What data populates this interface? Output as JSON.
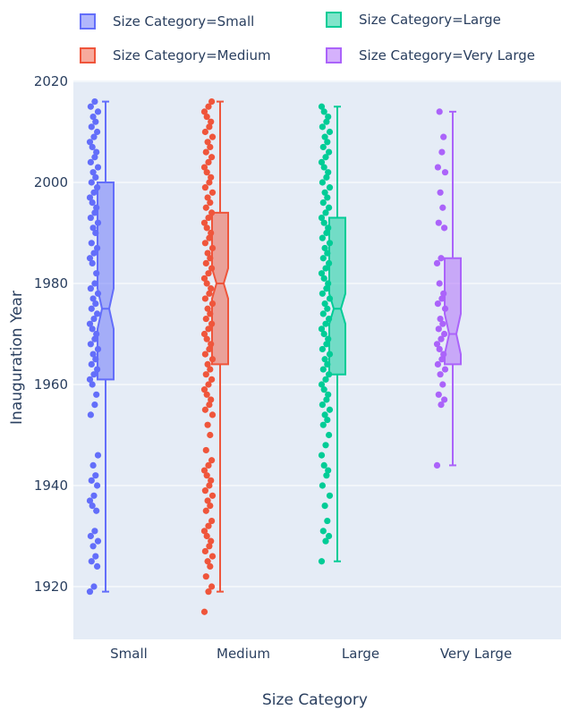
{
  "chart_data": {
    "type": "box",
    "xlabel": "Size Category",
    "ylabel": "Inauguration Year",
    "ylim": [
      1910,
      2020
    ],
    "yticks": [
      1920,
      1940,
      1960,
      1980,
      2000,
      2020
    ],
    "categories": [
      "Small",
      "Medium",
      "Large",
      "Very Large"
    ],
    "grid": true,
    "legend_position": "top",
    "legend": [
      "Size Category=Small",
      "Size Category=Medium",
      "Size Category=Large",
      "Size Category=Very Large"
    ],
    "series": [
      {
        "name": "Size Category=Small",
        "category": "Small",
        "color": "#636efa",
        "min": 1919,
        "q1": 1961,
        "median": 1975,
        "q3": 2000,
        "max": 2016,
        "notch_low": 1971,
        "notch_high": 1979,
        "points": [
          1919,
          1920,
          1924,
          1925,
          1926,
          1928,
          1929,
          1930,
          1931,
          1935,
          1936,
          1937,
          1938,
          1940,
          1941,
          1942,
          1944,
          1946,
          1954,
          1956,
          1958,
          1960,
          1961,
          1962,
          1963,
          1964,
          1965,
          1966,
          1967,
          1968,
          1969,
          1970,
          1971,
          1972,
          1973,
          1974,
          1975,
          1976,
          1977,
          1978,
          1979,
          1980,
          1982,
          1984,
          1985,
          1986,
          1987,
          1988,
          1990,
          1991,
          1992,
          1993,
          1994,
          1995,
          1996,
          1997,
          1998,
          1999,
          2000,
          2001,
          2002,
          2003,
          2004,
          2005,
          2006,
          2007,
          2008,
          2009,
          2010,
          2011,
          2012,
          2013,
          2014,
          2015,
          2016
        ]
      },
      {
        "name": "Size Category=Medium",
        "category": "Medium",
        "color": "#ef553b",
        "min": 1919,
        "q1": 1964,
        "median": 1980,
        "q3": 1994,
        "max": 2016,
        "notch_low": 1977,
        "notch_high": 1983,
        "points": [
          1915,
          1919,
          1920,
          1922,
          1924,
          1925,
          1926,
          1927,
          1928,
          1929,
          1930,
          1931,
          1932,
          1933,
          1935,
          1936,
          1937,
          1938,
          1939,
          1940,
          1941,
          1942,
          1943,
          1944,
          1945,
          1947,
          1950,
          1952,
          1954,
          1955,
          1956,
          1957,
          1958,
          1959,
          1960,
          1961,
          1962,
          1963,
          1964,
          1965,
          1966,
          1967,
          1968,
          1969,
          1970,
          1971,
          1972,
          1973,
          1974,
          1975,
          1976,
          1977,
          1978,
          1979,
          1980,
          1981,
          1982,
          1983,
          1984,
          1985,
          1986,
          1987,
          1988,
          1989,
          1990,
          1991,
          1992,
          1993,
          1994,
          1995,
          1996,
          1997,
          1998,
          1999,
          2000,
          2001,
          2002,
          2003,
          2004,
          2005,
          2006,
          2007,
          2008,
          2009,
          2010,
          2011,
          2012,
          2013,
          2014,
          2015,
          2016
        ]
      },
      {
        "name": "Size Category=Large",
        "category": "Large",
        "color": "#00cc96",
        "min": 1925,
        "q1": 1962,
        "median": 1975,
        "q3": 1993,
        "max": 2015,
        "notch_low": 1972,
        "notch_high": 1978,
        "points": [
          1925,
          1929,
          1930,
          1931,
          1933,
          1936,
          1938,
          1940,
          1942,
          1943,
          1944,
          1946,
          1948,
          1950,
          1952,
          1953,
          1954,
          1955,
          1956,
          1957,
          1958,
          1959,
          1960,
          1961,
          1962,
          1963,
          1964,
          1965,
          1966,
          1967,
          1968,
          1969,
          1970,
          1971,
          1972,
          1973,
          1974,
          1975,
          1976,
          1977,
          1978,
          1979,
          1980,
          1981,
          1982,
          1983,
          1984,
          1985,
          1986,
          1987,
          1988,
          1989,
          1990,
          1991,
          1992,
          1993,
          1994,
          1995,
          1996,
          1997,
          1998,
          1999,
          2000,
          2001,
          2002,
          2003,
          2004,
          2005,
          2006,
          2007,
          2008,
          2009,
          2010,
          2011,
          2012,
          2013,
          2014,
          2015
        ]
      },
      {
        "name": "Size Category=Very Large",
        "category": "Very Large",
        "color": "#ab63fa",
        "min": 1944,
        "q1": 1964,
        "median": 1970,
        "q3": 1985,
        "max": 2014,
        "notch_low": 1966,
        "notch_high": 1974,
        "points": [
          1944,
          1956,
          1957,
          1958,
          1960,
          1962,
          1963,
          1964,
          1965,
          1966,
          1967,
          1968,
          1969,
          1970,
          1971,
          1972,
          1973,
          1975,
          1976,
          1977,
          1978,
          1980,
          1984,
          1985,
          1991,
          1992,
          1995,
          1998,
          2002,
          2003,
          2006,
          2009,
          2014
        ]
      }
    ]
  }
}
